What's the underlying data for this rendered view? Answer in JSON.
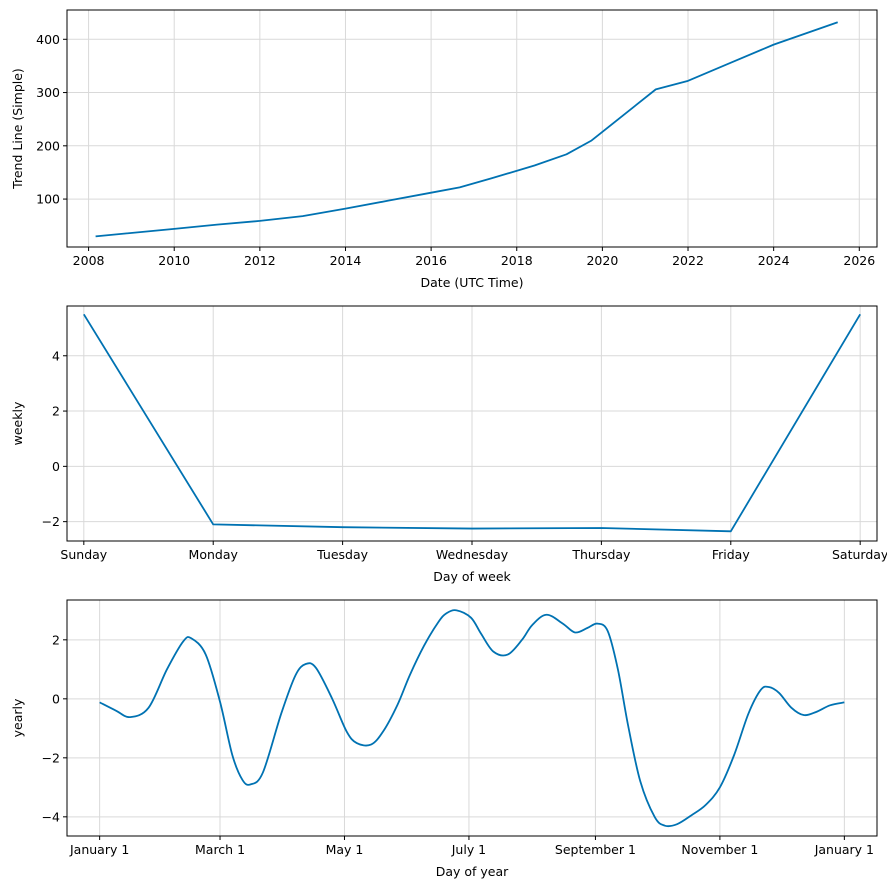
{
  "chart_data": [
    {
      "type": "line",
      "xlabel": "Date (UTC Time)",
      "ylabel": "Trend Line (Simple)",
      "x_axis": "date",
      "xlim": [
        "2007-07-01",
        "2026-06-01"
      ],
      "ylim": [
        10,
        455
      ],
      "xticks": [
        2008,
        2010,
        2012,
        2014,
        2016,
        2018,
        2020,
        2022,
        2024,
        2026
      ],
      "yticks": [
        100,
        200,
        300,
        400
      ],
      "grid": true,
      "series": [
        {
          "color": "#0072b2",
          "x": [
            "2008-03-01",
            "2010-01-01",
            "2011-01-01",
            "2012-01-01",
            "2013-01-01",
            "2014-01-01",
            "2015-01-01",
            "2016-01-01",
            "2016-09-01",
            "2017-06-01",
            "2018-06-01",
            "2019-03-01",
            "2019-10-01",
            "2021-04-01",
            "2022-01-01",
            "2023-01-01",
            "2024-01-01",
            "2025-07-01"
          ],
          "y": [
            30,
            44,
            52,
            59,
            68,
            82,
            97,
            112,
            122,
            139,
            163,
            184,
            210,
            306,
            322,
            356,
            390,
            432
          ]
        }
      ]
    },
    {
      "type": "line",
      "xlabel": "Day of week",
      "ylabel": "weekly",
      "categories": [
        "Sunday",
        "Monday",
        "Tuesday",
        "Wednesday",
        "Thursday",
        "Friday",
        "Saturday"
      ],
      "ylim": [
        -2.7,
        5.8
      ],
      "yticks": [
        -2,
        0,
        2,
        4
      ],
      "grid": true,
      "series": [
        {
          "color": "#0072b2",
          "values": [
            5.5,
            -2.1,
            -2.2,
            -2.25,
            -2.23,
            -2.35,
            5.5
          ]
        }
      ]
    },
    {
      "type": "line",
      "xlabel": "Day of year",
      "ylabel": "yearly",
      "x_axis": "day-of-year",
      "xlim": [
        -16,
        381
      ],
      "ylim": [
        -4.65,
        3.35
      ],
      "xticks": [
        {
          "day": 0,
          "label": "January 1"
        },
        {
          "day": 59,
          "label": "March 1"
        },
        {
          "day": 120,
          "label": "May 1"
        },
        {
          "day": 181,
          "label": "July 1"
        },
        {
          "day": 243,
          "label": "September 1"
        },
        {
          "day": 304,
          "label": "November 1"
        },
        {
          "day": 365,
          "label": "January 1"
        }
      ],
      "yticks": [
        -4,
        -2,
        0,
        2
      ],
      "grid": true,
      "series": [
        {
          "color": "#0072b2",
          "x": [
            0,
            8,
            15,
            24,
            33,
            41,
            45,
            52,
            59,
            65,
            70,
            74,
            80,
            89,
            96,
            101,
            106,
            114,
            121,
            126,
            133,
            139,
            146,
            152,
            159,
            166,
            170,
            175,
            182,
            187,
            193,
            200,
            207,
            212,
            219,
            227,
            233,
            239,
            244,
            249,
            254,
            259,
            265,
            272,
            277,
            283,
            290,
            297,
            304,
            311,
            318,
            324,
            328,
            333,
            339,
            345,
            351,
            358,
            365
          ],
          "y": [
            -0.12,
            -0.4,
            -0.62,
            -0.3,
            1.0,
            1.95,
            2.05,
            1.5,
            -0.1,
            -1.9,
            -2.75,
            -2.9,
            -2.5,
            -0.5,
            0.8,
            1.18,
            1.05,
            0.0,
            -1.1,
            -1.5,
            -1.55,
            -1.1,
            -0.2,
            0.8,
            1.8,
            2.6,
            2.9,
            3.0,
            2.75,
            2.2,
            1.6,
            1.5,
            2.0,
            2.5,
            2.85,
            2.55,
            2.25,
            2.4,
            2.55,
            2.3,
            1.0,
            -0.9,
            -2.8,
            -4.0,
            -4.3,
            -4.25,
            -3.95,
            -3.6,
            -3.0,
            -1.9,
            -0.5,
            0.3,
            0.4,
            0.2,
            -0.3,
            -0.55,
            -0.45,
            -0.22,
            -0.12
          ]
        }
      ]
    }
  ]
}
